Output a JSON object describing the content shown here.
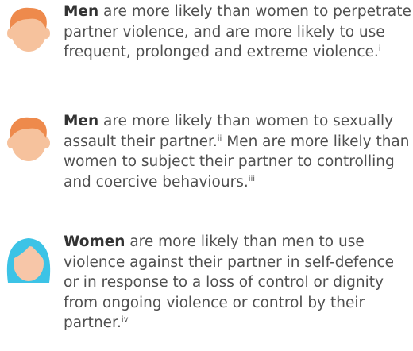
{
  "items": [
    {
      "icon": "man",
      "lead": "Men",
      "parts": [
        {
          "text": " are more likely than women to perpetrate partner violence, and are more likely to use frequent, prolonged and extreme violence.",
          "note": "i"
        }
      ]
    },
    {
      "icon": "man",
      "lead": "Men",
      "parts": [
        {
          "text": " are more likely than women to sexually assault their partner.",
          "note": "ii"
        },
        {
          "text": " Men are more likely than women to subject their partner to controlling and coercive behaviours.",
          "note": "iii"
        }
      ]
    },
    {
      "icon": "woman",
      "lead": "Women",
      "parts": [
        {
          "text": " are more likely than men to use violence against their partner in self-defence or in response to a loss of control or dignity from ongoing violence or control by their partner.",
          "note": "iv"
        }
      ]
    }
  ]
}
